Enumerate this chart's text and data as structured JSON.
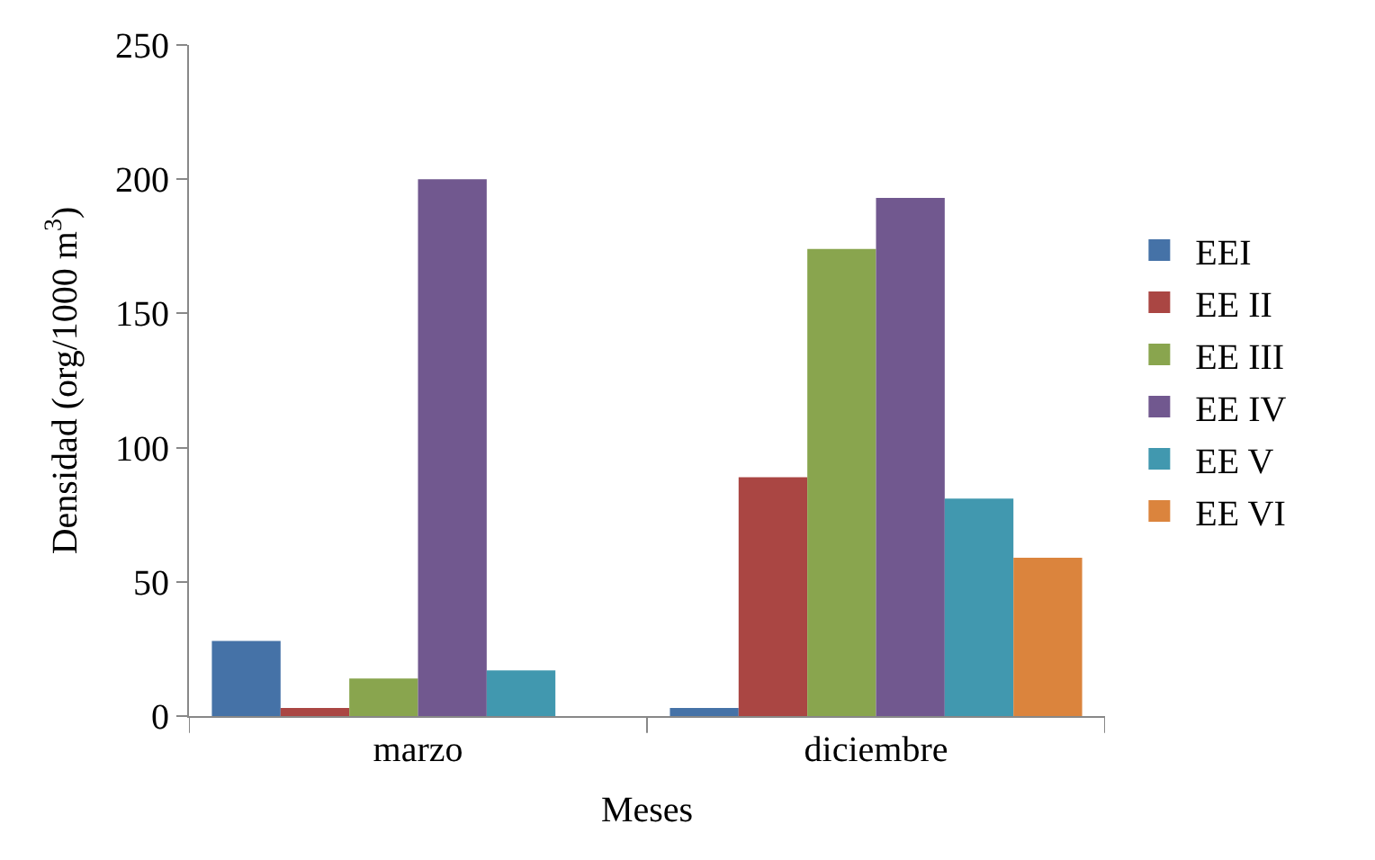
{
  "chart_data": {
    "type": "bar",
    "xlabel": "Meses",
    "ylabel": "Densidad (org/1000 m$^{3}$)",
    "categories": [
      "marzo",
      "diciembre"
    ],
    "series": [
      {
        "name": "EEI",
        "color": "#4572a7",
        "values": [
          28,
          3
        ]
      },
      {
        "name": "EE II",
        "color": "#aa4643",
        "values": [
          3,
          89
        ]
      },
      {
        "name": "EE III",
        "color": "#89a54e",
        "values": [
          14,
          174
        ]
      },
      {
        "name": "EE IV",
        "color": "#71588f",
        "values": [
          200,
          193
        ]
      },
      {
        "name": "EE V",
        "color": "#4198af",
        "values": [
          17,
          81
        ]
      },
      {
        "name": "EE VI",
        "color": "#db843d",
        "values": [
          null,
          59
        ]
      }
    ],
    "ylim": [
      0,
      250
    ],
    "yticks": [
      0,
      50,
      100,
      150,
      200,
      250
    ],
    "legend": "right"
  }
}
